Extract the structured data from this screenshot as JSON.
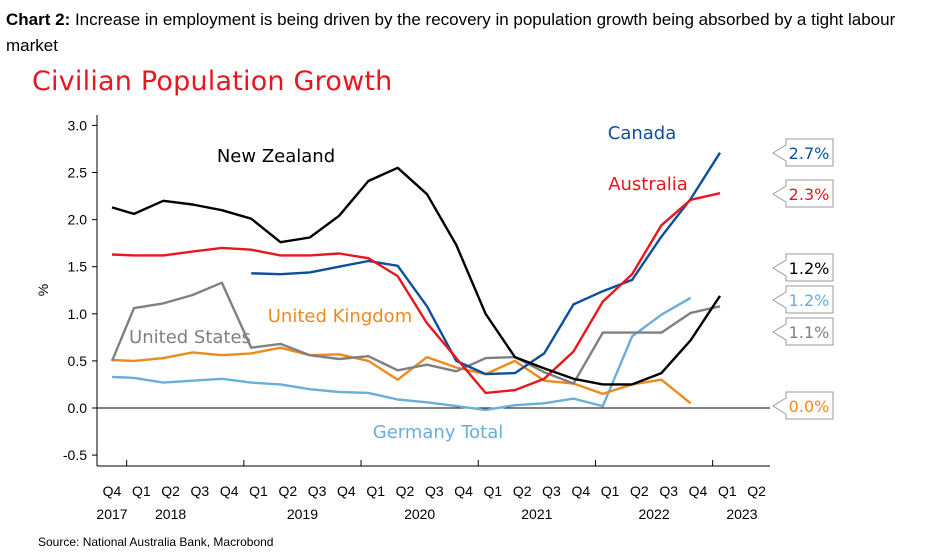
{
  "caption": {
    "prefix": "Chart 2:",
    "text": " Increase in employment is being driven by the recovery in population growth being absorbed by a tight labour market"
  },
  "source": "Source: National Australia Bank, Macrobond",
  "chart_data": {
    "type": "line",
    "title": "Civilian Population Growth",
    "ylabel": "%",
    "xlabel": "",
    "ylim": [
      -0.6,
      3.1
    ],
    "yticks": [
      "3.0",
      "2.5",
      "2.0",
      "1.5",
      "1.0",
      "0.5",
      "0.0",
      "-0.5"
    ],
    "ytick_values": [
      3.0,
      2.5,
      2.0,
      1.5,
      1.0,
      0.5,
      0.0,
      -0.5
    ],
    "quarters": [
      "Q4",
      "Q1",
      "Q2",
      "Q3",
      "Q4",
      "Q1",
      "Q2",
      "Q3",
      "Q4",
      "Q1",
      "Q2",
      "Q3",
      "Q4",
      "Q1",
      "Q2",
      "Q3",
      "Q4",
      "Q1",
      "Q2",
      "Q3",
      "Q4",
      "Q1",
      "Q2"
    ],
    "years": [
      {
        "label": "2017",
        "index": 0
      },
      {
        "label": "2018",
        "index": 2
      },
      {
        "label": "2019",
        "index": 6.5
      },
      {
        "label": "2020",
        "index": 10.5
      },
      {
        "label": "2021",
        "index": 14.5
      },
      {
        "label": "2022",
        "index": 18.5
      },
      {
        "label": "2023",
        "index": 21.5
      }
    ],
    "grid": false,
    "series": [
      {
        "name": "New Zealand",
        "color": "#000000",
        "x": [
          0,
          0.75,
          1.75,
          2.75,
          3.75,
          4.75,
          5.75,
          6.75,
          7.75,
          8.75,
          9.75,
          10.75,
          11.75,
          12.75,
          13.75,
          14.75,
          15.75,
          16.75,
          17.75,
          18.75,
          19.75,
          20.75
        ],
        "values": [
          2.13,
          2.06,
          2.2,
          2.16,
          2.1,
          2.01,
          1.76,
          1.81,
          2.04,
          2.41,
          2.55,
          2.27,
          1.73,
          1.0,
          0.54,
          0.42,
          0.31,
          0.25,
          0.25,
          0.37,
          0.72,
          1.19
        ]
      },
      {
        "name": "Australia",
        "color": "#e8161f",
        "x": [
          0,
          0.75,
          1.75,
          2.75,
          3.75,
          4.75,
          5.75,
          6.75,
          7.75,
          8.75,
          9.75,
          10.75,
          11.75,
          12.75,
          13.75,
          14.75,
          15.75,
          16.75,
          17.75,
          18.75,
          19.75,
          20.75
        ],
        "values": [
          1.63,
          1.62,
          1.62,
          1.66,
          1.7,
          1.68,
          1.62,
          1.62,
          1.64,
          1.59,
          1.4,
          0.9,
          0.53,
          0.16,
          0.19,
          0.31,
          0.6,
          1.13,
          1.42,
          1.94,
          2.21,
          2.28
        ]
      },
      {
        "name": "Canada",
        "color": "#0c4f9e",
        "x": [
          4.75,
          5.75,
          6.75,
          7.75,
          8.75,
          9.75,
          10.75,
          11.75,
          12.75,
          13.75,
          14.75,
          15.75,
          16.75,
          17.75,
          18.75,
          19.75,
          20.75
        ],
        "values": [
          1.43,
          1.42,
          1.44,
          1.5,
          1.56,
          1.51,
          1.08,
          0.5,
          0.36,
          0.37,
          0.58,
          1.1,
          1.24,
          1.36,
          1.82,
          2.22,
          2.71
        ]
      },
      {
        "name": "United States",
        "color": "#808080",
        "x": [
          0,
          0.75,
          1.75,
          2.75,
          3.75,
          4.75,
          5.75,
          6.75,
          7.75,
          8.75,
          9.75,
          10.75,
          11.75,
          12.75,
          13.75,
          14.75,
          15.75,
          16.75,
          17.75,
          18.75,
          19.75,
          20.75
        ],
        "values": [
          0.5,
          1.06,
          1.11,
          1.2,
          1.33,
          0.64,
          0.68,
          0.56,
          0.52,
          0.55,
          0.4,
          0.46,
          0.39,
          0.53,
          0.54,
          0.38,
          0.26,
          0.8,
          0.8,
          0.8,
          1.01,
          1.08
        ]
      },
      {
        "name": "United Kingdom",
        "color": "#ee8a1c",
        "x": [
          0,
          0.75,
          1.75,
          2.75,
          3.75,
          4.75,
          5.75,
          6.75,
          7.75,
          8.75,
          9.75,
          10.75,
          11.75,
          12.75,
          13.75,
          14.75,
          15.75,
          16.75,
          17.75,
          18.75,
          19.75
        ],
        "values": [
          0.51,
          0.5,
          0.53,
          0.59,
          0.56,
          0.58,
          0.64,
          0.56,
          0.57,
          0.5,
          0.3,
          0.54,
          0.43,
          0.36,
          0.5,
          0.29,
          0.26,
          0.15,
          0.25,
          0.3,
          0.05
        ]
      },
      {
        "name": "Germany Total",
        "color": "#6aaedb",
        "x": [
          0,
          0.75,
          1.75,
          2.75,
          3.75,
          4.75,
          5.75,
          6.75,
          7.75,
          8.75,
          9.75,
          10.75,
          11.75,
          12.75,
          13.75,
          14.75,
          15.75,
          16.75,
          17.75,
          18.75,
          19.75
        ],
        "values": [
          0.33,
          0.32,
          0.27,
          0.29,
          0.31,
          0.27,
          0.25,
          0.2,
          0.17,
          0.16,
          0.09,
          0.06,
          0.02,
          -0.02,
          0.03,
          0.05,
          0.1,
          0.02,
          0.76,
          0.99,
          1.17
        ]
      }
    ],
    "callouts": [
      {
        "label": "2.7%",
        "color": "#0c4f9e",
        "value": 2.7
      },
      {
        "label": "2.3%",
        "color": "#e8161f",
        "value": 2.3
      },
      {
        "label": "1.2%",
        "color": "#000000",
        "value": 1.2
      },
      {
        "label": "1.2%",
        "color": "#6aaedb",
        "value": 1.2
      },
      {
        "label": "1.1%",
        "color": "#808080",
        "value": 1.1
      },
      {
        "label": "0.0%",
        "color": "#ee8a1c",
        "value": 0.0
      }
    ]
  }
}
